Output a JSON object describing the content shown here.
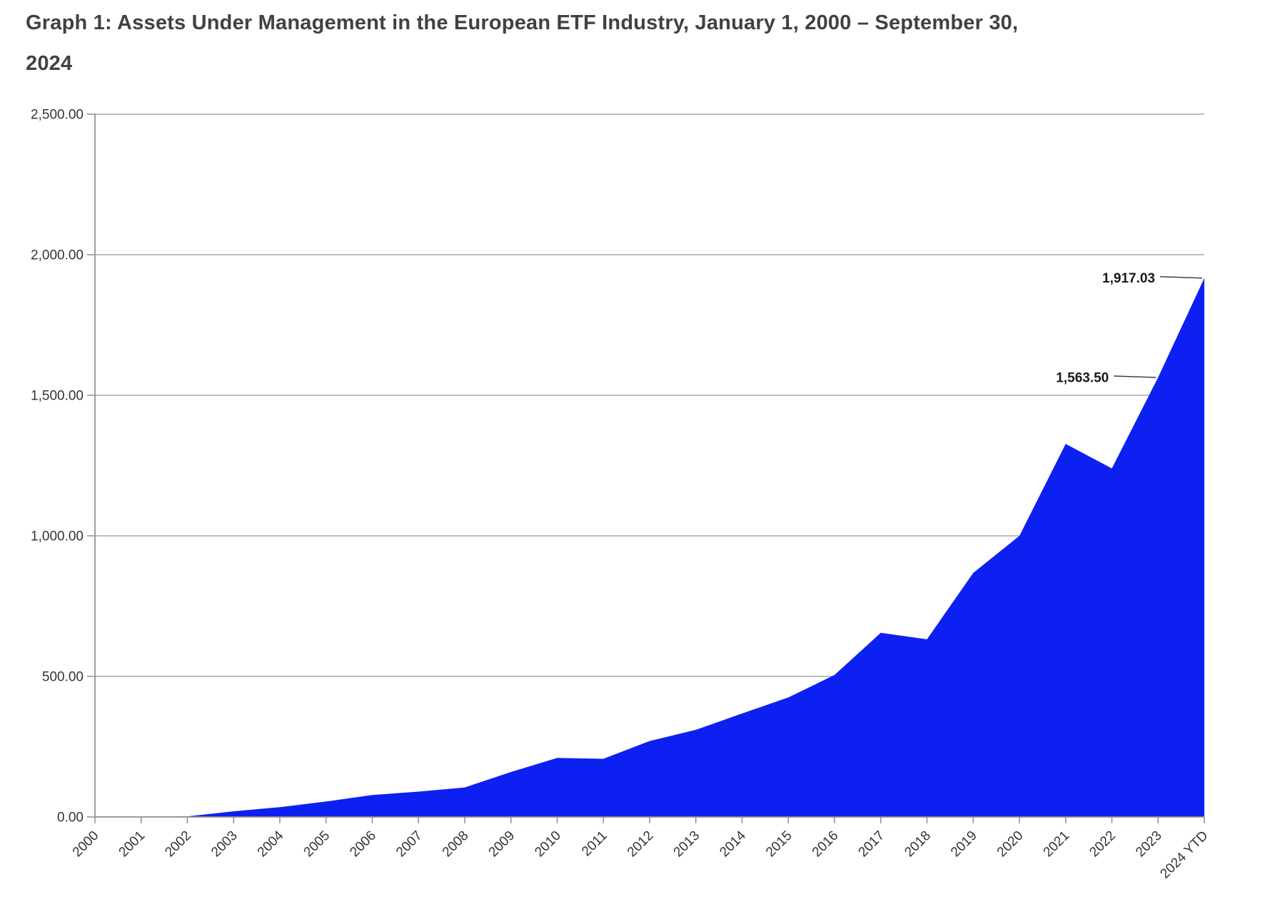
{
  "title": {
    "line1": "Graph 1: Assets Under Management in the European ETF Industry, January 1, 2000 – September 30,",
    "line2": "2024"
  },
  "chart_data": {
    "type": "area",
    "x": [
      "2000",
      "2001",
      "2002",
      "2003",
      "2004",
      "2005",
      "2006",
      "2007",
      "2008",
      "2009",
      "2010",
      "2011",
      "2012",
      "2013",
      "2014",
      "2015",
      "2016",
      "2017",
      "2018",
      "2019",
      "2020",
      "2021",
      "2022",
      "2023",
      "2024 YTD"
    ],
    "values": [
      0,
      0,
      2,
      20,
      35,
      55,
      78,
      90,
      105,
      160,
      210,
      207,
      270,
      310,
      368,
      425,
      505,
      655,
      632,
      868,
      1000,
      1327,
      1240,
      1563.5,
      1917.03
    ],
    "ylim": [
      0,
      2500
    ],
    "ytick_interval": 500,
    "ytick_labels": [
      "0.00",
      "500.00",
      "1,000.00",
      "1,500.00",
      "2,000.00",
      "2,500.00"
    ],
    "grid": "horizontal",
    "legend_position": "none",
    "area_color": "#0D20F2",
    "annotations": [
      {
        "text": "1,563.50",
        "x": "2023"
      },
      {
        "text": "1,917.03",
        "x": "2024 YTD"
      }
    ]
  }
}
